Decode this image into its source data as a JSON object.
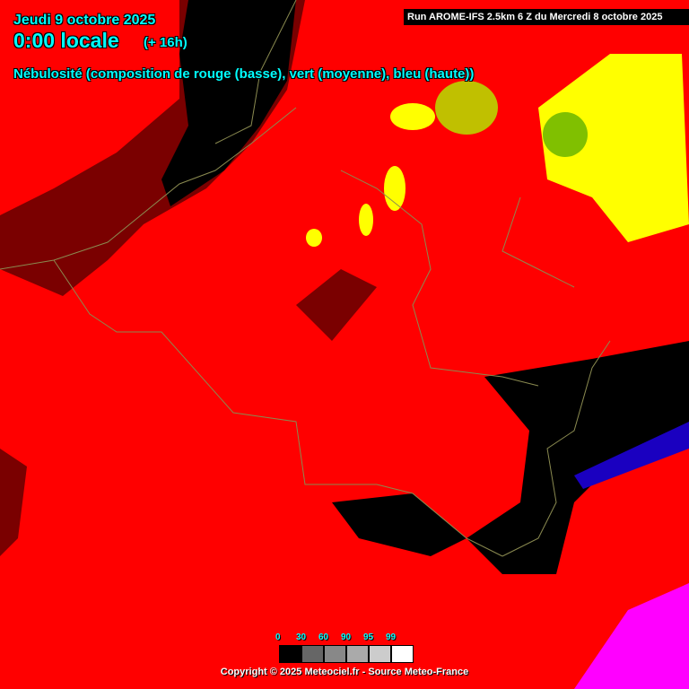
{
  "header": {
    "date": "Jeudi 9 octobre 2025",
    "time": "0:00 locale",
    "lead": "(+ 16h)",
    "description": "Nébulosité (composition de rouge (basse), vert (moyenne), bleu (haute))",
    "run": "Run AROME-IFS 2.5km 6 Z du Mercredi 8 octobre 2025"
  },
  "legend": {
    "items": [
      {
        "label": "0",
        "color": "#000000"
      },
      {
        "label": "30",
        "color": "#666666"
      },
      {
        "label": "60",
        "color": "#888888"
      },
      {
        "label": "90",
        "color": "#aaaaaa"
      },
      {
        "label": "95",
        "color": "#cccccc"
      },
      {
        "label": "99",
        "color": "#ffffff"
      }
    ]
  },
  "footer": {
    "copyright": "Copyright © 2025 Meteociel.fr - Source Meteo-France"
  },
  "colors": {
    "low_cloud": "#ff0000",
    "mid_low": "#ffff00",
    "high": "#0000ff",
    "high_low": "#ff00ff",
    "clear": "#000000",
    "border": "#8a8a50"
  }
}
